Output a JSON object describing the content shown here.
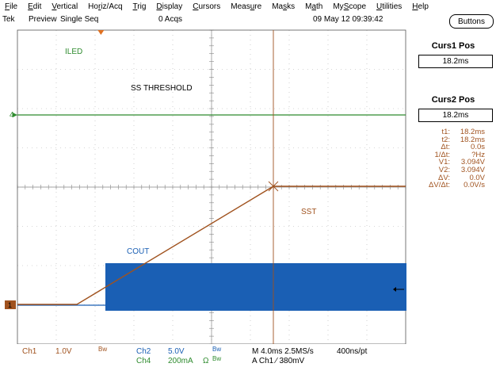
{
  "menu": [
    "File",
    "Edit",
    "Vertical",
    "Horiz/Acq",
    "Trig",
    "Display",
    "Cursors",
    "Measure",
    "Masks",
    "Math",
    "MyScope",
    "Utilities",
    "Help"
  ],
  "menu_underline_index": [
    0,
    0,
    0,
    2,
    0,
    0,
    0,
    4,
    2,
    1,
    2,
    0,
    0
  ],
  "status": {
    "brand": "Tek",
    "mode": "Preview",
    "acq_mode": "Single Seq",
    "acqs": "0 Acqs",
    "datetime": "09 May 12 09:39:42"
  },
  "buttons_label": "Buttons",
  "curs1": {
    "title": "Curs1 Pos",
    "value": "18.2ms"
  },
  "curs2": {
    "title": "Curs2 Pos",
    "value": "18.2ms"
  },
  "readouts": [
    {
      "label": "t1:",
      "value": "18.2ms"
    },
    {
      "label": "t2:",
      "value": "18.2ms"
    },
    {
      "label": "Δt:",
      "value": "0.0s"
    },
    {
      "label": "1/Δt:",
      "value": "?Hz"
    },
    {
      "label": "V1:",
      "value": "3.094V"
    },
    {
      "label": "V2:",
      "value": "3.094V"
    },
    {
      "label": "ΔV:",
      "value": "0.0V"
    },
    {
      "label": "ΔV/Δt:",
      "value": "0.0V/s"
    }
  ],
  "waveform_labels": {
    "iled": "ILED",
    "threshold": "SS THRESHOLD",
    "sst": "SST",
    "cout": "COUT"
  },
  "channel_markers": {
    "ch4": "4",
    "ch1": "1"
  },
  "bottom": {
    "ch1_name": "Ch1",
    "ch1_scale": "1.0V",
    "ch1_bw": "Bw",
    "ch2_name": "Ch2",
    "ch2_scale": "5.0V",
    "ch2_bw": "Bw",
    "ch4_name": "Ch4",
    "ch4_scale": "200mA",
    "ch4_ohm": "Ω",
    "ch4_bw": "Bw",
    "timebase": "M 4.0ms 2.5MS/s",
    "trigger": "A  Ch1  ⁄  380mV",
    "record": "400ns/pt"
  },
  "colors": {
    "ch1": "#a0521e",
    "ch2": "#1a5fb4",
    "ch4": "#2e8b2e",
    "cursor": "#a0521e"
  }
}
